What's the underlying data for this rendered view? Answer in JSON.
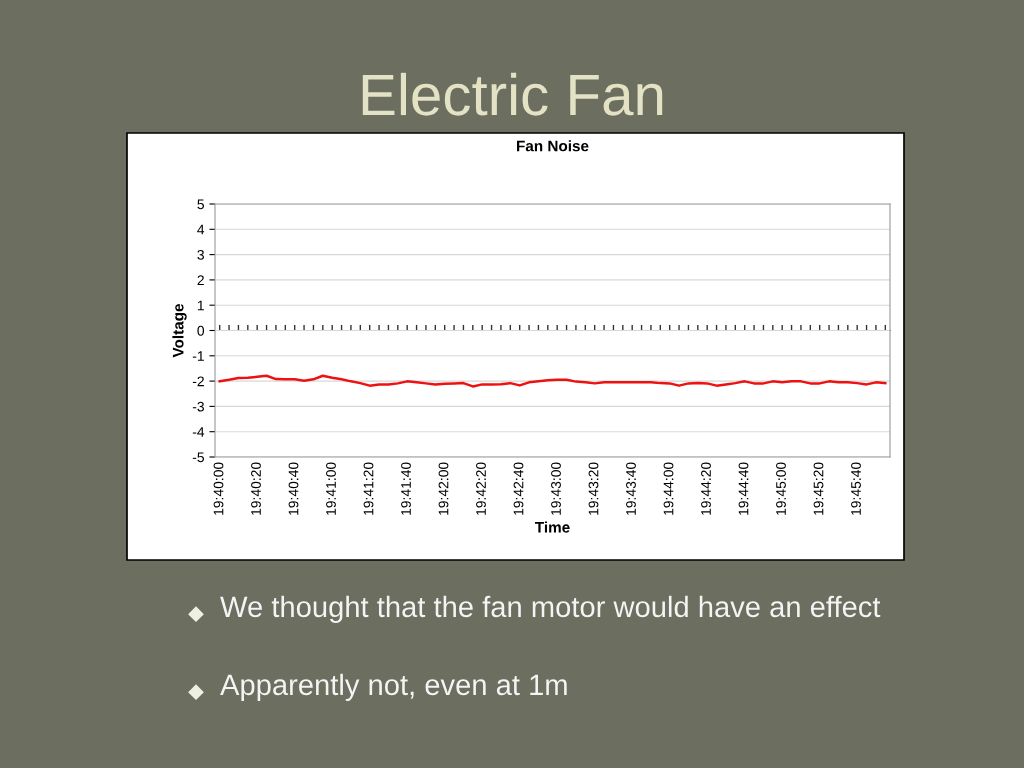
{
  "chart_data": {
    "type": "line",
    "title": "Fan Noise",
    "xlabel": "Time",
    "ylabel": "Voltage",
    "annotations": [
      "Electric Fan",
      "We thought that the fan motor would have an effect",
      "Apparently not, even at 1m"
    ],
    "categories": [
      "19:40:00",
      null,
      null,
      null,
      "19:40:20",
      null,
      null,
      null,
      "19:40:40",
      null,
      null,
      null,
      "19:41:00",
      null,
      null,
      null,
      "19:41:20",
      null,
      null,
      null,
      "19:41:40",
      null,
      null,
      null,
      "19:42:00",
      null,
      null,
      null,
      "19:42:20",
      null,
      null,
      null,
      "19:42:40",
      null,
      null,
      null,
      "19:43:00",
      null,
      null,
      null,
      "19:43:20",
      null,
      null,
      null,
      "19:43:40",
      null,
      null,
      null,
      "19:44:00",
      null,
      null,
      null,
      "19:44:20",
      null,
      null,
      null,
      "19:44:40",
      null,
      null,
      null,
      "19:45:00",
      null,
      null,
      null,
      "19:45:20",
      null,
      null,
      null,
      "19:45:40",
      null,
      null,
      null
    ],
    "series": [
      {
        "color": "#ee1111",
        "values": [
          -2.01,
          -1.95,
          -1.88,
          -1.87,
          -1.83,
          -1.79,
          -1.92,
          -1.93,
          -1.93,
          -1.99,
          -1.93,
          -1.79,
          -1.87,
          -1.93,
          -2.01,
          -2.08,
          -2.18,
          -2.13,
          -2.13,
          -2.09,
          -2.01,
          -2.05,
          -2.09,
          -2.13,
          -2.1,
          -2.09,
          -2.08,
          -2.21,
          -2.13,
          -2.13,
          -2.12,
          -2.08,
          -2.17,
          -2.05,
          -2.01,
          -1.97,
          -1.95,
          -1.95,
          -2.02,
          -2.05,
          -2.09,
          -2.05,
          -2.05,
          -2.05,
          -2.05,
          -2.05,
          -2.05,
          -2.08,
          -2.09,
          -2.18,
          -2.09,
          -2.08,
          -2.09,
          -2.18,
          -2.13,
          -2.08,
          -2.01,
          -2.09,
          -2.09,
          -2.01,
          -2.05,
          -2.01,
          -2.01,
          -2.09,
          -2.09,
          -2.01,
          -2.05,
          -2.05,
          -2.08,
          -2.13,
          -2.05,
          -2.08
        ]
      }
    ],
    "ylim": [
      -5,
      5
    ],
    "yticks": [
      -5,
      -4,
      -3,
      -2,
      -1,
      0,
      1,
      2,
      3,
      4,
      5
    ],
    "grid": "y",
    "marker": "none",
    "line_style": "solid"
  }
}
